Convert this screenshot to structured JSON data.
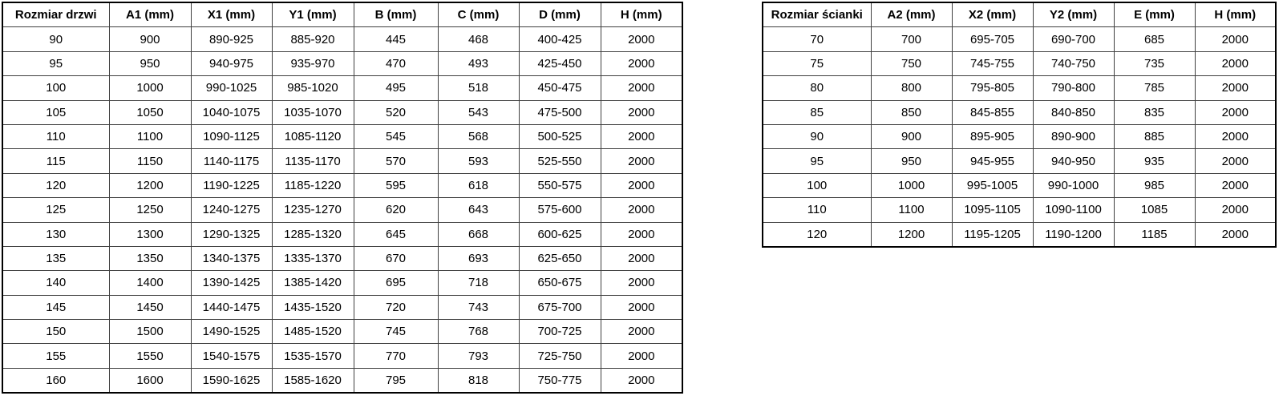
{
  "tables": [
    {
      "name": "door-size-table",
      "title_column": "Rozmiar drzwi",
      "headers": [
        "Rozmiar drzwi",
        "A1 (mm)",
        "X1 (mm)",
        "Y1 (mm)",
        "B (mm)",
        "C (mm)",
        "D (mm)",
        "H (mm)"
      ],
      "rows": [
        [
          "90",
          "900",
          "890-925",
          "885-920",
          "445",
          "468",
          "400-425",
          "2000"
        ],
        [
          "95",
          "950",
          "940-975",
          "935-970",
          "470",
          "493",
          "425-450",
          "2000"
        ],
        [
          "100",
          "1000",
          "990-1025",
          "985-1020",
          "495",
          "518",
          "450-475",
          "2000"
        ],
        [
          "105",
          "1050",
          "1040-1075",
          "1035-1070",
          "520",
          "543",
          "475-500",
          "2000"
        ],
        [
          "110",
          "1100",
          "1090-1125",
          "1085-1120",
          "545",
          "568",
          "500-525",
          "2000"
        ],
        [
          "115",
          "1150",
          "1140-1175",
          "1135-1170",
          "570",
          "593",
          "525-550",
          "2000"
        ],
        [
          "120",
          "1200",
          "1190-1225",
          "1185-1220",
          "595",
          "618",
          "550-575",
          "2000"
        ],
        [
          "125",
          "1250",
          "1240-1275",
          "1235-1270",
          "620",
          "643",
          "575-600",
          "2000"
        ],
        [
          "130",
          "1300",
          "1290-1325",
          "1285-1320",
          "645",
          "668",
          "600-625",
          "2000"
        ],
        [
          "135",
          "1350",
          "1340-1375",
          "1335-1370",
          "670",
          "693",
          "625-650",
          "2000"
        ],
        [
          "140",
          "1400",
          "1390-1425",
          "1385-1420",
          "695",
          "718",
          "650-675",
          "2000"
        ],
        [
          "145",
          "1450",
          "1440-1475",
          "1435-1520",
          "720",
          "743",
          "675-700",
          "2000"
        ],
        [
          "150",
          "1500",
          "1490-1525",
          "1485-1520",
          "745",
          "768",
          "700-725",
          "2000"
        ],
        [
          "155",
          "1550",
          "1540-1575",
          "1535-1570",
          "770",
          "793",
          "725-750",
          "2000"
        ],
        [
          "160",
          "1600",
          "1590-1625",
          "1585-1620",
          "795",
          "818",
          "750-775",
          "2000"
        ]
      ]
    },
    {
      "name": "wall-size-table",
      "title_column": "Rozmiar ścianki",
      "headers": [
        "Rozmiar ścianki",
        "A2 (mm)",
        "X2 (mm)",
        "Y2 (mm)",
        "E (mm)",
        "H (mm)"
      ],
      "rows": [
        [
          "70",
          "700",
          "695-705",
          "690-700",
          "685",
          "2000"
        ],
        [
          "75",
          "750",
          "745-755",
          "740-750",
          "735",
          "2000"
        ],
        [
          "80",
          "800",
          "795-805",
          "790-800",
          "785",
          "2000"
        ],
        [
          "85",
          "850",
          "845-855",
          "840-850",
          "835",
          "2000"
        ],
        [
          "90",
          "900",
          "895-905",
          "890-900",
          "885",
          "2000"
        ],
        [
          "95",
          "950",
          "945-955",
          "940-950",
          "935",
          "2000"
        ],
        [
          "100",
          "1000",
          "995-1005",
          "990-1000",
          "985",
          "2000"
        ],
        [
          "110",
          "1100",
          "1095-1105",
          "1090-1100",
          "1085",
          "2000"
        ],
        [
          "120",
          "1200",
          "1195-1205",
          "1190-1200",
          "1185",
          "2000"
        ]
      ]
    }
  ],
  "colors": {
    "table_outer_border": "#000000",
    "table_inner_border": "#404040",
    "background": "#ffffff",
    "text": "#000000"
  }
}
